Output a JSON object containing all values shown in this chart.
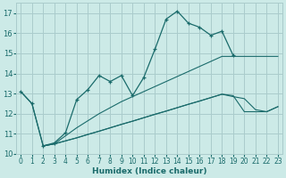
{
  "title": "",
  "xlabel": "Humidex (Indice chaleur)",
  "ylabel": "",
  "bg_color": "#cceae7",
  "grid_color": "#aacccc",
  "line_color": "#1a6b6b",
  "xlim": [
    0,
    23
  ],
  "ylim": [
    10,
    17.5
  ],
  "yticks": [
    10,
    11,
    12,
    13,
    14,
    15,
    16,
    17
  ],
  "xticks": [
    0,
    1,
    2,
    3,
    4,
    5,
    6,
    7,
    8,
    9,
    10,
    11,
    12,
    13,
    14,
    15,
    16,
    17,
    18,
    19,
    20,
    21,
    22,
    23
  ],
  "series_main": {
    "x": [
      0,
      1,
      2,
      3,
      4,
      5,
      6,
      7,
      8,
      9,
      10,
      11,
      12,
      13,
      14,
      15,
      16,
      17,
      18,
      19
    ],
    "y": [
      13.1,
      12.5,
      10.4,
      10.55,
      11.05,
      12.7,
      13.2,
      13.9,
      13.6,
      13.9,
      12.9,
      13.8,
      15.2,
      16.7,
      17.1,
      16.5,
      16.3,
      15.9,
      16.1,
      14.9
    ]
  },
  "series_line1": {
    "x": [
      0,
      1,
      2,
      3,
      4,
      5,
      6,
      7,
      8,
      9,
      10,
      11,
      12,
      13,
      14,
      15,
      16,
      17,
      18,
      19,
      20,
      21,
      22,
      23
    ],
    "y": [
      13.1,
      12.5,
      10.4,
      10.5,
      10.9,
      11.3,
      11.65,
      12.0,
      12.3,
      12.6,
      12.85,
      13.1,
      13.35,
      13.6,
      13.85,
      14.1,
      14.35,
      14.6,
      14.85,
      14.85,
      14.85,
      14.85,
      14.85,
      14.85
    ]
  },
  "series_line2": {
    "x": [
      2,
      3,
      4,
      5,
      6,
      7,
      8,
      9,
      10,
      11,
      12,
      13,
      14,
      15,
      16,
      17,
      18,
      19,
      20,
      21,
      22,
      23
    ],
    "y": [
      10.4,
      10.5,
      10.65,
      10.8,
      10.97,
      11.13,
      11.3,
      11.47,
      11.63,
      11.8,
      11.97,
      12.13,
      12.3,
      12.47,
      12.63,
      12.8,
      12.97,
      12.85,
      12.75,
      12.2,
      12.1,
      12.35
    ]
  },
  "series_line3": {
    "x": [
      2,
      3,
      4,
      5,
      6,
      7,
      8,
      9,
      10,
      11,
      12,
      13,
      14,
      15,
      16,
      17,
      18,
      19,
      20,
      21,
      22,
      23
    ],
    "y": [
      10.4,
      10.5,
      10.65,
      10.8,
      10.97,
      11.13,
      11.3,
      11.47,
      11.63,
      11.8,
      11.97,
      12.13,
      12.3,
      12.47,
      12.63,
      12.8,
      12.97,
      12.9,
      12.1,
      12.1,
      12.1,
      12.35
    ]
  }
}
